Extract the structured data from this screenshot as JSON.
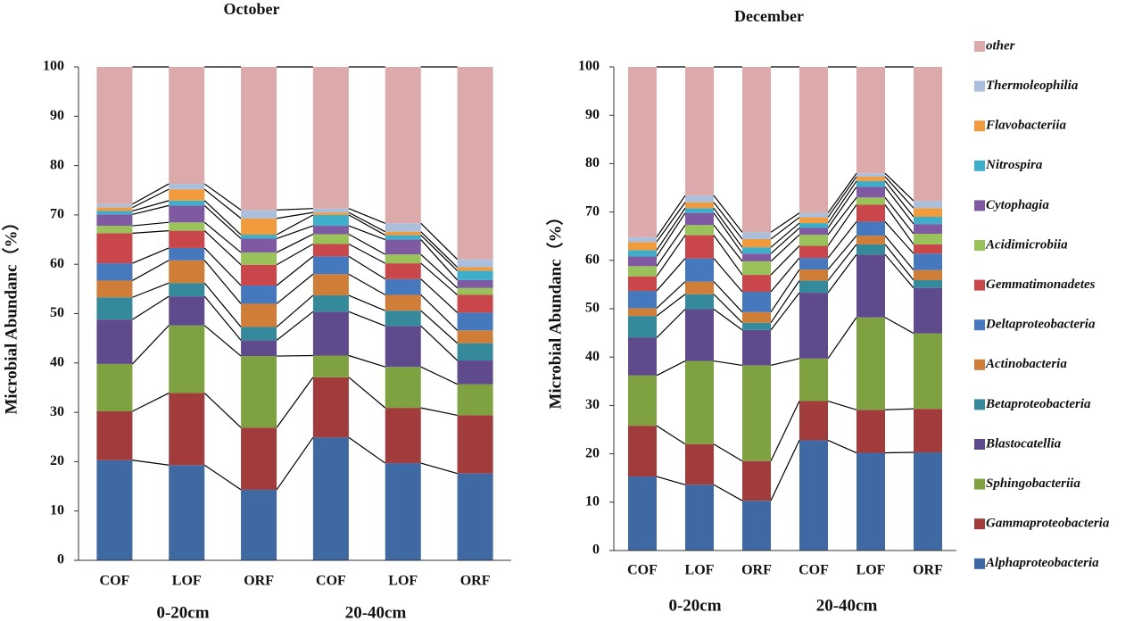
{
  "chart_data": [
    {
      "type": "bar",
      "stacked": true,
      "title": "October",
      "y_label": "Microbial Abundanc（%）",
      "categories": [
        "COF",
        "LOF",
        "ORF",
        "COF",
        "LOF",
        "ORF"
      ],
      "group_labels": [
        "0-20cm",
        "20-40cm"
      ],
      "ylim": [
        0,
        100
      ],
      "yticks": [
        0,
        10,
        20,
        30,
        40,
        50,
        60,
        70,
        80,
        90,
        100
      ],
      "series": [
        {
          "color": "#3f69a3",
          "values": [
            20.3,
            19.3,
            14.3,
            24.9,
            19.7,
            17.6
          ]
        },
        {
          "color": "#a23b3b",
          "values": [
            9.9,
            14.6,
            12.6,
            12.2,
            11.2,
            11.8
          ]
        },
        {
          "color": "#7fa240",
          "values": [
            9.6,
            13.7,
            14.5,
            4.4,
            8.3,
            6.3
          ]
        },
        {
          "color": "#5f4a8d",
          "values": [
            9.0,
            5.9,
            3.2,
            8.9,
            8.3,
            4.8
          ]
        },
        {
          "color": "#348a9b",
          "values": [
            4.5,
            2.7,
            2.7,
            3.3,
            3.1,
            3.5
          ]
        },
        {
          "color": "#d07e37",
          "values": [
            3.4,
            4.6,
            4.7,
            4.3,
            3.2,
            2.6
          ]
        },
        {
          "color": "#4678bd",
          "values": [
            3.5,
            2.5,
            3.7,
            3.6,
            3.2,
            3.6
          ]
        },
        {
          "color": "#c9474a",
          "values": [
            6.1,
            3.5,
            4.2,
            2.5,
            3.2,
            3.6
          ]
        },
        {
          "color": "#9ac25a",
          "values": [
            1.5,
            1.7,
            2.5,
            2.0,
            1.8,
            1.4
          ]
        },
        {
          "color": "#7f5aa2",
          "values": [
            2.3,
            3.4,
            2.8,
            1.7,
            3.0,
            1.6
          ]
        },
        {
          "color": "#3eaecb",
          "values": [
            0.7,
            1.0,
            0.8,
            2.2,
            0.9,
            1.9
          ]
        },
        {
          "color": "#f29b3d",
          "values": [
            0.7,
            2.3,
            3.3,
            0.5,
            0.7,
            0.7
          ]
        },
        {
          "color": "#a9bfdc",
          "values": [
            0.7,
            1.1,
            1.7,
            0.8,
            1.7,
            1.6
          ]
        },
        {
          "color": "#dcaaab",
          "values": [
            27.8,
            23.7,
            29.0,
            28.7,
            31.7,
            39.0
          ]
        }
      ]
    },
    {
      "type": "bar",
      "stacked": true,
      "title": "December",
      "y_label": "Microbial Abundanc（%）",
      "categories": [
        "COF",
        "LOF",
        "ORF",
        "COF",
        "LOF",
        "ORF"
      ],
      "group_labels": [
        "0-20cm",
        "20-40cm"
      ],
      "ylim": [
        0,
        100
      ],
      "yticks": [
        0,
        10,
        20,
        30,
        40,
        50,
        60,
        70,
        80,
        90,
        100
      ],
      "series": [
        {
          "name": "Alphaproteobacteria",
          "color": "#3f69a3",
          "values": [
            15.3,
            13.6,
            10.3,
            22.8,
            20.2,
            20.3
          ]
        },
        {
          "name": "Gammaproteobacteria",
          "color": "#a23b3b",
          "values": [
            10.5,
            8.4,
            8.2,
            8.1,
            8.9,
            9.0
          ]
        },
        {
          "name": "Sphingobacteriia",
          "color": "#7fa240",
          "values": [
            10.4,
            17.2,
            19.8,
            8.8,
            19.1,
            15.6
          ]
        },
        {
          "name": "Blastocatellia",
          "color": "#5f4a8d",
          "values": [
            7.8,
            10.7,
            7.3,
            13.6,
            13.0,
            9.4
          ]
        },
        {
          "name": "Betaproteobacteria",
          "color": "#348a9b",
          "values": [
            4.5,
            3.1,
            1.5,
            2.5,
            2.1,
            1.6
          ]
        },
        {
          "name": "Actinobacteria",
          "color": "#d07e37",
          "values": [
            1.6,
            2.6,
            2.2,
            2.3,
            1.8,
            2.1
          ]
        },
        {
          "name": "Deltaproteobacteria",
          "color": "#4678bd",
          "values": [
            3.6,
            4.8,
            4.2,
            2.4,
            2.9,
            3.4
          ]
        },
        {
          "name": "Gemmatimonadetes",
          "color": "#c9474a",
          "values": [
            3.0,
            4.8,
            3.5,
            2.5,
            3.5,
            1.9
          ]
        },
        {
          "name": "Acidimicrobiia",
          "color": "#9ac25a",
          "values": [
            2.1,
            2.1,
            2.8,
            2.3,
            1.5,
            2.2
          ]
        },
        {
          "name": "Cytophagia",
          "color": "#7f5aa2",
          "values": [
            2.0,
            2.5,
            1.6,
            1.4,
            2.2,
            2.0
          ]
        },
        {
          "name": "Nitrospira",
          "color": "#3eaecb",
          "values": [
            1.3,
            1.0,
            1.3,
            1.0,
            1.2,
            1.5
          ]
        },
        {
          "name": "Flavobacteriia",
          "color": "#f29b3d",
          "values": [
            1.7,
            1.2,
            1.7,
            1.2,
            0.9,
            1.8
          ]
        },
        {
          "name": "Thermoleophilia",
          "color": "#a9bfdc",
          "values": [
            1.0,
            1.4,
            1.4,
            0.9,
            0.7,
            1.5
          ]
        },
        {
          "name": "other",
          "color": "#dcaaab",
          "values": [
            35.2,
            26.6,
            34.2,
            30.2,
            22.0,
            27.7
          ]
        }
      ]
    }
  ]
}
